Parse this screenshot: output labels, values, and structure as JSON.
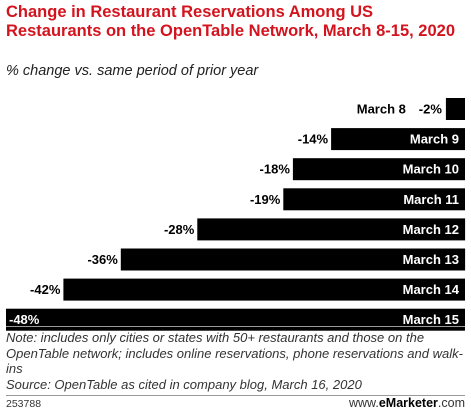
{
  "title": "Change in Restaurant Reservations Among US Restaurants on the OpenTable Network, March 8-15, 2020",
  "subtitle": "% change vs. same period of prior year",
  "note": "Note: includes only cities or states with 50+ restaurants and those on the OpenTable network; includes online reservations, phone reservations and walk-ins",
  "source": "Source: OpenTable as cited in company blog, March 16, 2020",
  "chart_id": "253788",
  "brand": {
    "prefix": "www.",
    "name": "eMarketer",
    "suffix": ".com"
  },
  "chart_data": {
    "type": "bar",
    "orientation": "horizontal",
    "categories": [
      "March 8",
      "March 9",
      "March 10",
      "March 11",
      "March 12",
      "March 13",
      "March 14",
      "March 15"
    ],
    "values": [
      -2,
      -14,
      -18,
      -19,
      -28,
      -36,
      -42,
      -48
    ],
    "value_labels": [
      "-2%",
      "-14%",
      "-18%",
      "-19%",
      "-28%",
      "-36%",
      "-42%",
      "-48%"
    ],
    "xlim": [
      -48,
      0
    ],
    "grid": false,
    "legend": "none",
    "bar_color": "#000000"
  },
  "colors": {
    "title": "#d3141e",
    "bar": "#000000",
    "category_text": "#ffffff"
  }
}
